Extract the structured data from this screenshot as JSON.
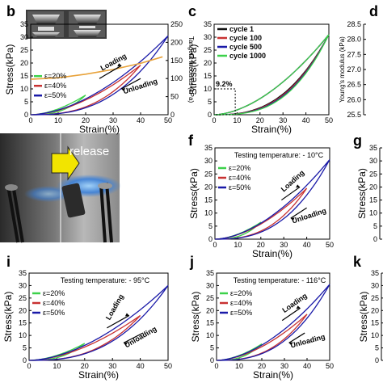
{
  "figure": {
    "panel_labels": [
      "b",
      "c",
      "d",
      "f",
      "g",
      "i",
      "j",
      "k"
    ],
    "photo_text": "release"
  },
  "chart_data": [
    {
      "id": "b",
      "type": "line",
      "xlabel": "Strain(%)",
      "ylabel": "Stress(kPa)",
      "y2label": "Tangent modulus (kPa)",
      "xlim": [
        0,
        50
      ],
      "ylim": [
        0,
        35
      ],
      "y2lim": [
        0,
        250
      ],
      "xticks": [
        0,
        10,
        20,
        30,
        40,
        50
      ],
      "yticks": [
        0,
        5,
        10,
        15,
        20,
        25,
        30,
        35
      ],
      "y2ticks": [
        0,
        50,
        100,
        150,
        200,
        250
      ],
      "legend": [
        "ε=20%",
        "ε=40%",
        "ε=50%"
      ],
      "colors": [
        "#3cd14a",
        "#c83232",
        "#1a1aa8"
      ],
      "series_max_strain": [
        20,
        40,
        50
      ],
      "series_max_stress": [
        7.6,
        19.2,
        30.5
      ],
      "tangent_modulus": {
        "x": [
          0,
          10,
          20,
          30,
          40,
          48
        ],
        "y": [
          98,
          102,
          112,
          125,
          142,
          160
        ]
      },
      "annotations": [
        "Loading",
        "Unloading"
      ]
    },
    {
      "id": "c",
      "type": "line",
      "xlabel": "Strain(%)",
      "ylabel": "Stress(kPa)",
      "xlim": [
        0,
        50
      ],
      "ylim": [
        0,
        35
      ],
      "xticks": [
        0,
        10,
        20,
        30,
        40,
        50
      ],
      "yticks": [
        0,
        5,
        10,
        15,
        20,
        25,
        30,
        35
      ],
      "legend": [
        "cycle 1",
        "cycle 100",
        "cycle 500",
        "cycle 1000"
      ],
      "colors": [
        "#111111",
        "#c83232",
        "#1a1aa8",
        "#3cd14a"
      ],
      "max_strain": 50,
      "max_stress": 31,
      "annotations": [
        "9.2%"
      ]
    },
    {
      "id": "d",
      "type": "scatter",
      "ylabel": "Young's modulus (kPa)",
      "ylim": [
        25.5,
        28.5
      ],
      "yticks": [
        25.5,
        26.0,
        26.5,
        27.0,
        27.5,
        28.0,
        28.5
      ]
    },
    {
      "id": "f",
      "type": "line",
      "title": "Testing temperature: - 10°C",
      "xlabel": "Strain(%)",
      "ylabel": "Stress(kPa)",
      "xlim": [
        0,
        50
      ],
      "ylim": [
        0,
        35
      ],
      "xticks": [
        0,
        10,
        20,
        30,
        40,
        50
      ],
      "yticks": [
        0,
        5,
        10,
        15,
        20,
        25,
        30,
        35
      ],
      "legend": [
        "ε=20%",
        "ε=40%",
        "ε=50%"
      ],
      "colors": [
        "#3cd14a",
        "#c83232",
        "#1a1aa8"
      ],
      "series_max_strain": [
        20,
        40,
        50
      ],
      "series_max_stress": [
        6.5,
        19.5,
        30.5
      ],
      "annotations": [
        "Loading",
        "Unloading"
      ]
    },
    {
      "id": "g",
      "type": "line",
      "ylabel": "Stress(kPa)",
      "ylim": [
        0,
        35
      ],
      "yticks": [
        0,
        5,
        10,
        15,
        20,
        25,
        30,
        35
      ]
    },
    {
      "id": "i",
      "type": "line",
      "title": "Testing temperature: - 95°C",
      "xlabel": "Strain(%)",
      "ylabel": "Stress(kPa)",
      "xlim": [
        0,
        50
      ],
      "ylim": [
        0,
        35
      ],
      "xticks": [
        0,
        10,
        20,
        30,
        40,
        50
      ],
      "yticks": [
        0,
        5,
        10,
        15,
        20,
        25,
        30,
        35
      ],
      "legend": [
        "ε=20%",
        "ε=40%",
        "ε=50%"
      ],
      "colors": [
        "#3cd14a",
        "#c83232",
        "#1a1aa8"
      ],
      "series_max_strain": [
        20,
        40,
        50
      ],
      "series_max_stress": [
        6.8,
        18.0,
        30.0
      ],
      "annotations": [
        "Loading",
        "Unloading"
      ]
    },
    {
      "id": "j",
      "type": "line",
      "title": "Testing temperature: - 116°C",
      "xlabel": "Strain(%)",
      "ylabel": "Stress(kPa)",
      "xlim": [
        0,
        50
      ],
      "ylim": [
        0,
        35
      ],
      "xticks": [
        0,
        10,
        20,
        30,
        40,
        50
      ],
      "yticks": [
        0,
        5,
        10,
        15,
        20,
        25,
        30,
        35
      ],
      "legend": [
        "ε=20%",
        "ε=40%",
        "ε=50%"
      ],
      "colors": [
        "#3cd14a",
        "#c83232",
        "#1a1aa8"
      ],
      "series_max_strain": [
        20,
        40,
        50
      ],
      "series_max_stress": [
        6.6,
        18.5,
        30.5
      ],
      "annotations": [
        "Loading",
        "Unloading"
      ]
    },
    {
      "id": "k",
      "type": "line",
      "ylabel": "Stress(kPa)",
      "ylim": [
        0,
        35
      ],
      "yticks": [
        0,
        5,
        10,
        15,
        20,
        25,
        30,
        35
      ]
    }
  ]
}
